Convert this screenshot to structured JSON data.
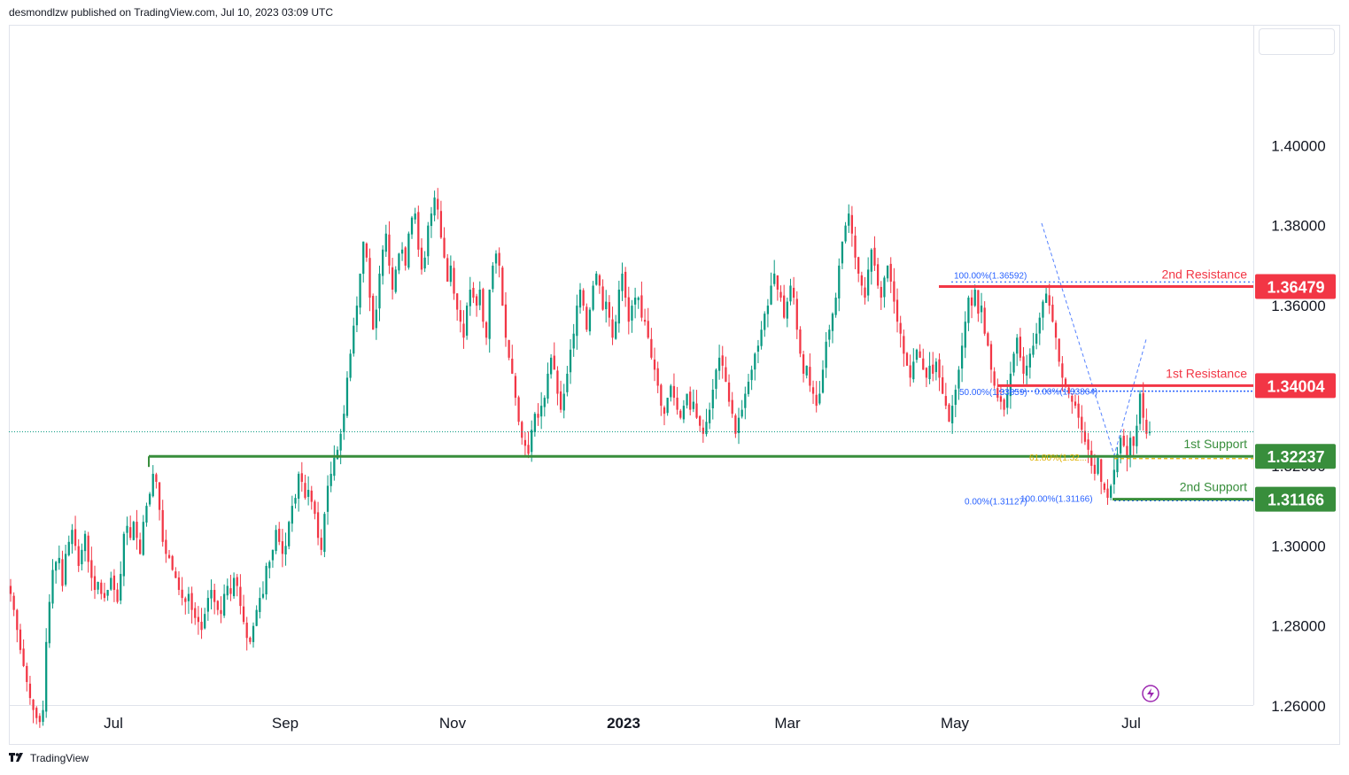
{
  "header": {
    "published": "desmondlzw published on TradingView.com, Jul 10, 2023 03:09 UTC"
  },
  "footer": {
    "brand": "TradingView",
    "logo_icon": "tradingview-logo-icon"
  },
  "colors": {
    "up": "#089981",
    "down": "#f23645",
    "resistance": "#f23645",
    "support": "#388e3c",
    "fib_blue": "#2962ff",
    "fib_gold": "#e0b000",
    "grid_text": "#131722",
    "current_line": "#089981",
    "flash_icon": "#9c27b0"
  },
  "chart_data": {
    "type": "candlestick",
    "title": "",
    "ylim": [
      1.2545,
      1.4255
    ],
    "y_ticks": [
      "1.40000",
      "1.38000",
      "1.36000",
      "1.34000",
      "1.32000",
      "1.30000",
      "1.28000",
      "1.26000"
    ],
    "x_ticks": [
      {
        "label": "Jul",
        "bold": false
      },
      {
        "label": "Sep",
        "bold": false
      },
      {
        "label": "Nov",
        "bold": false
      },
      {
        "label": "2023",
        "bold": true
      },
      {
        "label": "Mar",
        "bold": false
      },
      {
        "label": "May",
        "bold": false
      },
      {
        "label": "Jul",
        "bold": false
      }
    ],
    "levels": [
      {
        "name": "2nd Resistance",
        "value": "1.36479",
        "price": 1.36479,
        "kind": "resistance"
      },
      {
        "name": "1st Resistance",
        "value": "1.34004",
        "price": 1.34004,
        "kind": "resistance"
      },
      {
        "name": "1st Support",
        "value": "1.32237",
        "price": 1.32237,
        "kind": "support"
      },
      {
        "name": "2nd Support",
        "value": "1.31166",
        "price": 1.31166,
        "kind": "support"
      }
    ],
    "fib_labels": [
      {
        "text": "100.00%(1.36592)",
        "price": 1.36592
      },
      {
        "text": "50.00%(1.33859)",
        "price": 1.33859
      },
      {
        "text": "0.00%(1.33864)",
        "price": 1.33864
      },
      {
        "text": "61.80%(1.32...",
        "price": 1.32237
      },
      {
        "text": "0.00%(1.31127)",
        "price": 1.31127
      },
      {
        "text": "100.00%(1.31166)",
        "price": 1.31166
      }
    ],
    "current_price": 1.3285,
    "daily_closes": [
      1.288,
      1.284,
      1.279,
      1.274,
      1.27,
      1.266,
      1.262,
      1.259,
      1.257,
      1.256,
      1.259,
      1.276,
      1.286,
      1.294,
      1.296,
      1.297,
      1.29,
      1.298,
      1.301,
      1.304,
      1.3,
      1.295,
      1.299,
      1.303,
      1.296,
      1.292,
      1.289,
      1.291,
      1.288,
      1.287,
      1.289,
      1.292,
      1.289,
      1.286,
      1.293,
      1.303,
      1.305,
      1.302,
      1.306,
      1.302,
      1.298,
      1.306,
      1.31,
      1.313,
      1.318,
      1.316,
      1.309,
      1.301,
      1.298,
      1.297,
      1.294,
      1.292,
      1.289,
      1.287,
      1.286,
      1.288,
      1.284,
      1.282,
      1.281,
      1.279,
      1.283,
      1.287,
      1.289,
      1.286,
      1.284,
      1.283,
      1.288,
      1.29,
      1.288,
      1.292,
      1.29,
      1.285,
      1.281,
      1.277,
      1.276,
      1.28,
      1.284,
      1.287,
      1.288,
      1.295,
      1.296,
      1.299,
      1.304,
      1.301,
      1.298,
      1.3,
      1.306,
      1.31,
      1.312,
      1.318,
      1.316,
      1.312,
      1.314,
      1.311,
      1.308,
      1.302,
      1.299,
      1.308,
      1.315,
      1.318,
      1.322,
      1.324,
      1.328,
      1.333,
      1.342,
      1.348,
      1.355,
      1.36,
      1.368,
      1.376,
      1.372,
      1.362,
      1.354,
      1.359,
      1.368,
      1.374,
      1.378,
      1.37,
      1.364,
      1.369,
      1.373,
      1.374,
      1.37,
      1.378,
      1.382,
      1.383,
      1.374,
      1.369,
      1.372,
      1.38,
      1.383,
      1.387,
      1.384,
      1.377,
      1.372,
      1.366,
      1.37,
      1.363,
      1.359,
      1.356,
      1.352,
      1.36,
      1.364,
      1.362,
      1.36,
      1.364,
      1.356,
      1.352,
      1.364,
      1.37,
      1.373,
      1.37,
      1.36,
      1.352,
      1.347,
      1.343,
      1.337,
      1.331,
      1.327,
      1.325,
      1.323,
      1.329,
      1.333,
      1.332,
      1.335,
      1.337,
      1.343,
      1.347,
      1.344,
      1.338,
      1.334,
      1.338,
      1.343,
      1.349,
      1.353,
      1.36,
      1.364,
      1.36,
      1.354,
      1.359,
      1.365,
      1.368,
      1.365,
      1.359,
      1.361,
      1.357,
      1.352,
      1.356,
      1.364,
      1.368,
      1.362,
      1.356,
      1.36,
      1.362,
      1.362,
      1.357,
      1.356,
      1.352,
      1.347,
      1.344,
      1.34,
      1.335,
      1.333,
      1.337,
      1.34,
      1.337,
      1.334,
      1.332,
      1.335,
      1.338,
      1.334,
      1.336,
      1.332,
      1.33,
      1.328,
      1.331,
      1.334,
      1.339,
      1.344,
      1.347,
      1.345,
      1.341,
      1.336,
      1.333,
      1.328,
      1.332,
      1.334,
      1.338,
      1.341,
      1.344,
      1.348,
      1.35,
      1.354,
      1.358,
      1.36,
      1.365,
      1.368,
      1.364,
      1.362,
      1.357,
      1.361,
      1.365,
      1.362,
      1.354,
      1.348,
      1.343,
      1.345,
      1.34,
      1.338,
      1.335,
      1.338,
      1.344,
      1.351,
      1.354,
      1.358,
      1.362,
      1.37,
      1.376,
      1.38,
      1.383,
      1.378,
      1.372,
      1.368,
      1.365,
      1.362,
      1.369,
      1.374,
      1.37,
      1.365,
      1.362,
      1.367,
      1.37,
      1.366,
      1.361,
      1.356,
      1.353,
      1.348,
      1.345,
      1.342,
      1.346,
      1.349,
      1.347,
      1.344,
      1.342,
      1.345,
      1.343,
      1.346,
      1.342,
      1.338,
      1.335,
      1.331,
      1.335,
      1.339,
      1.344,
      1.35,
      1.356,
      1.362,
      1.36,
      1.364,
      1.358,
      1.36,
      1.353,
      1.35,
      1.344,
      1.34,
      1.337,
      1.336,
      1.334,
      1.338,
      1.343,
      1.348,
      1.352,
      1.347,
      1.343,
      1.345,
      1.348,
      1.35,
      1.353,
      1.357,
      1.361,
      1.363,
      1.36,
      1.356,
      1.352,
      1.346,
      1.342,
      1.34,
      1.338,
      1.336,
      1.335,
      1.332,
      1.329,
      1.326,
      1.324,
      1.32,
      1.318,
      1.322,
      1.316,
      1.314,
      1.312,
      1.315,
      1.319,
      1.323,
      1.327,
      1.325,
      1.322,
      1.327,
      1.325,
      1.33,
      1.338,
      1.332,
      1.328,
      1.3285
    ]
  }
}
